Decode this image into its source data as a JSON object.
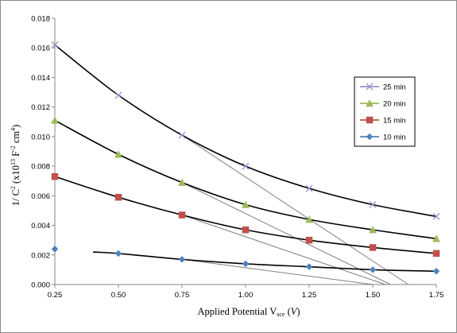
{
  "chart_data": {
    "type": "line",
    "title": "",
    "xlabel": {
      "main": "Applied Potential  V",
      "sub": "sce",
      "tail": " (",
      "unit": "V",
      "close": ")"
    },
    "ylabel": {
      "main": "1/ C",
      "sup1": "2",
      "mid": " (x10",
      "sup2": "13",
      "unit1": " F",
      "sup3": "-2",
      "unit2": " cm",
      "sup4": "4",
      "close": ")"
    },
    "xlim": [
      0.25,
      1.75
    ],
    "ylim": [
      0,
      0.018
    ],
    "xticks": [
      "0.25",
      "0.50",
      "0.75",
      "1.00",
      "1.25",
      "1.50",
      "1.75"
    ],
    "yticks": [
      "0.000",
      "0.002",
      "0.004",
      "0.006",
      "0.008",
      "0.010",
      "0.012",
      "0.014",
      "0.016",
      "0.018"
    ],
    "grid": false,
    "legend_position": "right",
    "x": [
      0.25,
      0.5,
      0.75,
      1.0,
      1.25,
      1.5,
      1.75
    ],
    "series": [
      {
        "name": "25 min",
        "color": "#9c8fcf",
        "marker": "x-cross",
        "values": [
          0.0162,
          0.0128,
          0.0101,
          0.008,
          0.0065,
          0.0054,
          0.0046
        ]
      },
      {
        "name": "20 min",
        "color": "#9bbb59",
        "marker": "triangle",
        "values": [
          0.0111,
          0.0088,
          0.0069,
          0.0054,
          0.0044,
          0.0037,
          0.0031
        ]
      },
      {
        "name": "15 min",
        "color": "#c0504d",
        "marker": "square",
        "values": [
          0.0073,
          0.0059,
          0.0047,
          0.0037,
          0.003,
          0.0025,
          0.0021
        ]
      },
      {
        "name": "10 min",
        "color": "#4f81bd",
        "marker": "diamond",
        "values": [
          0.0024,
          0.0021,
          0.0017,
          0.0014,
          0.0012,
          0.001,
          0.0009
        ]
      }
    ],
    "fits": [
      {
        "name": "25 min",
        "color": "#000000",
        "points": [
          [
            0.25,
            0.0162
          ],
          [
            0.5,
            0.0128
          ],
          [
            0.75,
            0.0101
          ],
          [
            1.0,
            0.008
          ],
          [
            1.25,
            0.0065
          ],
          [
            1.5,
            0.0054
          ],
          [
            1.75,
            0.0046
          ]
        ]
      },
      {
        "name": "20 min",
        "color": "#000000",
        "points": [
          [
            0.25,
            0.0111
          ],
          [
            0.5,
            0.0088
          ],
          [
            0.75,
            0.0069
          ],
          [
            1.0,
            0.0054
          ],
          [
            1.25,
            0.0044
          ],
          [
            1.5,
            0.0037
          ],
          [
            1.75,
            0.0031
          ]
        ]
      },
      {
        "name": "15 min",
        "color": "#000000",
        "points": [
          [
            0.25,
            0.0073
          ],
          [
            0.5,
            0.0059
          ],
          [
            0.75,
            0.0047
          ],
          [
            1.0,
            0.0037
          ],
          [
            1.25,
            0.003
          ],
          [
            1.5,
            0.0025
          ],
          [
            1.75,
            0.0021
          ]
        ]
      },
      {
        "name": "10 min",
        "color": "#000000",
        "points": [
          [
            0.4,
            0.0022
          ],
          [
            0.5,
            0.0021
          ],
          [
            0.75,
            0.0017
          ],
          [
            1.0,
            0.0014
          ],
          [
            1.25,
            0.0012
          ],
          [
            1.5,
            0.001
          ],
          [
            1.75,
            0.0009
          ]
        ]
      }
    ],
    "tangents": [
      {
        "color": "#808080",
        "from": [
          0.75,
          0.0101
        ],
        "to": [
          1.64,
          0.0
        ]
      },
      {
        "color": "#808080",
        "from": [
          0.75,
          0.0069
        ],
        "to": [
          1.57,
          0.0
        ]
      },
      {
        "color": "#808080",
        "from": [
          0.75,
          0.0047
        ],
        "to": [
          1.55,
          0.0
        ]
      },
      {
        "color": "#808080",
        "from": [
          0.75,
          0.0017
        ],
        "to": [
          1.5,
          0.0
        ]
      }
    ]
  }
}
